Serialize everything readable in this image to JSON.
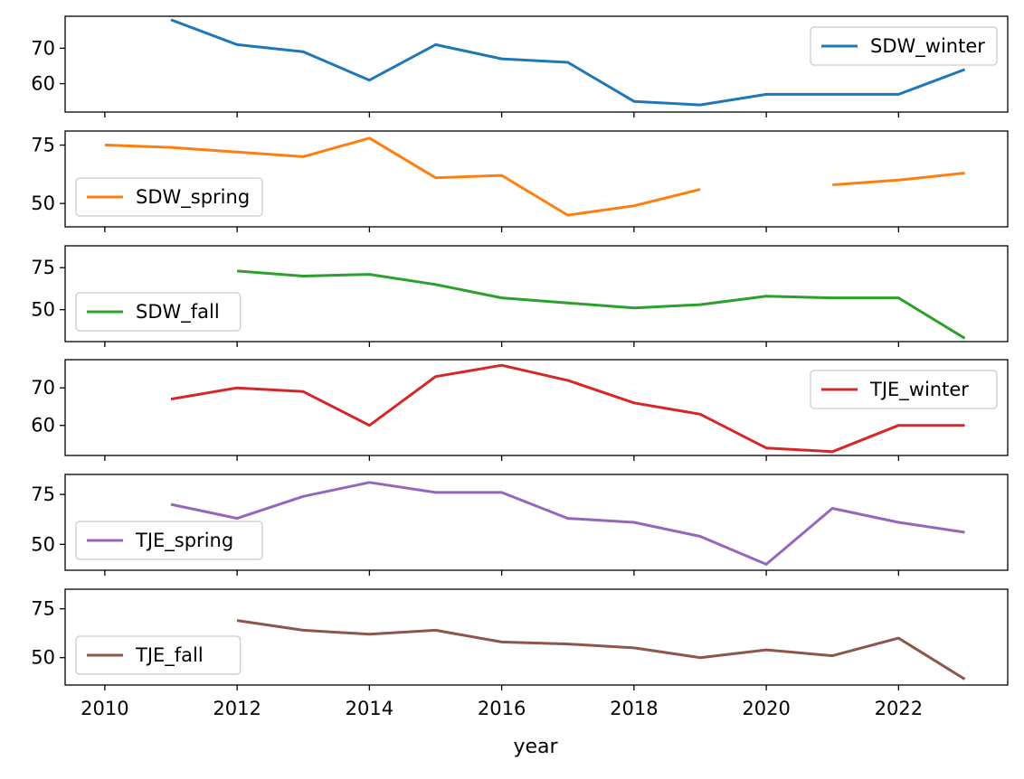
{
  "chart_data": {
    "type": "line",
    "layout": "stacked-subplots-shared-x",
    "xlabel": "year",
    "x_ticks": [
      2010,
      2012,
      2014,
      2016,
      2018,
      2020,
      2022
    ],
    "xlim": [
      2009.4,
      2023.65
    ],
    "x": [
      2010,
      2011,
      2012,
      2013,
      2014,
      2015,
      2016,
      2017,
      2018,
      2019,
      2020,
      2021,
      2022,
      2023
    ],
    "series": [
      {
        "name": "SDW_winter",
        "color": "#1f77b4",
        "legend": "top-right",
        "ylim": [
          52,
          79
        ],
        "yticks": [
          60,
          70
        ],
        "values": [
          null,
          78,
          71,
          69,
          61,
          71,
          67,
          66,
          55,
          54,
          57,
          57,
          57,
          64
        ]
      },
      {
        "name": "SDW_spring",
        "color": "#ff7f0e",
        "legend": "lower-left",
        "ylim": [
          40,
          81
        ],
        "yticks": [
          50,
          75
        ],
        "values": [
          75,
          74,
          72,
          70,
          78,
          61,
          62,
          45,
          49,
          56,
          null,
          58,
          60,
          63
        ]
      },
      {
        "name": "SDW_fall",
        "color": "#2ca02c",
        "legend": "lower-left",
        "ylim": [
          31,
          88
        ],
        "yticks": [
          50,
          75
        ],
        "values": [
          null,
          null,
          73,
          70,
          71,
          65,
          57,
          54,
          51,
          53,
          58,
          57,
          57,
          33
        ]
      },
      {
        "name": "TJE_winter",
        "color": "#d62728",
        "legend": "top-right",
        "ylim": [
          52,
          77.5
        ],
        "yticks": [
          60,
          70
        ],
        "values": [
          null,
          67,
          70,
          69,
          60,
          73,
          76,
          72,
          66,
          63,
          54,
          53,
          60,
          60
        ]
      },
      {
        "name": "TJE_spring",
        "color": "#9467bd",
        "legend": "lower-left",
        "ylim": [
          37,
          85
        ],
        "yticks": [
          50,
          75
        ],
        "values": [
          null,
          70,
          63,
          74,
          81,
          76,
          76,
          63,
          61,
          54,
          40,
          68,
          61,
          56
        ]
      },
      {
        "name": "TJE_fall",
        "color": "#8c564b",
        "legend": "lower-left",
        "ylim": [
          36,
          85
        ],
        "yticks": [
          50,
          75
        ],
        "values": [
          null,
          null,
          69,
          64,
          62,
          64,
          58,
          57,
          55,
          50,
          54,
          51,
          60,
          39
        ]
      }
    ]
  }
}
